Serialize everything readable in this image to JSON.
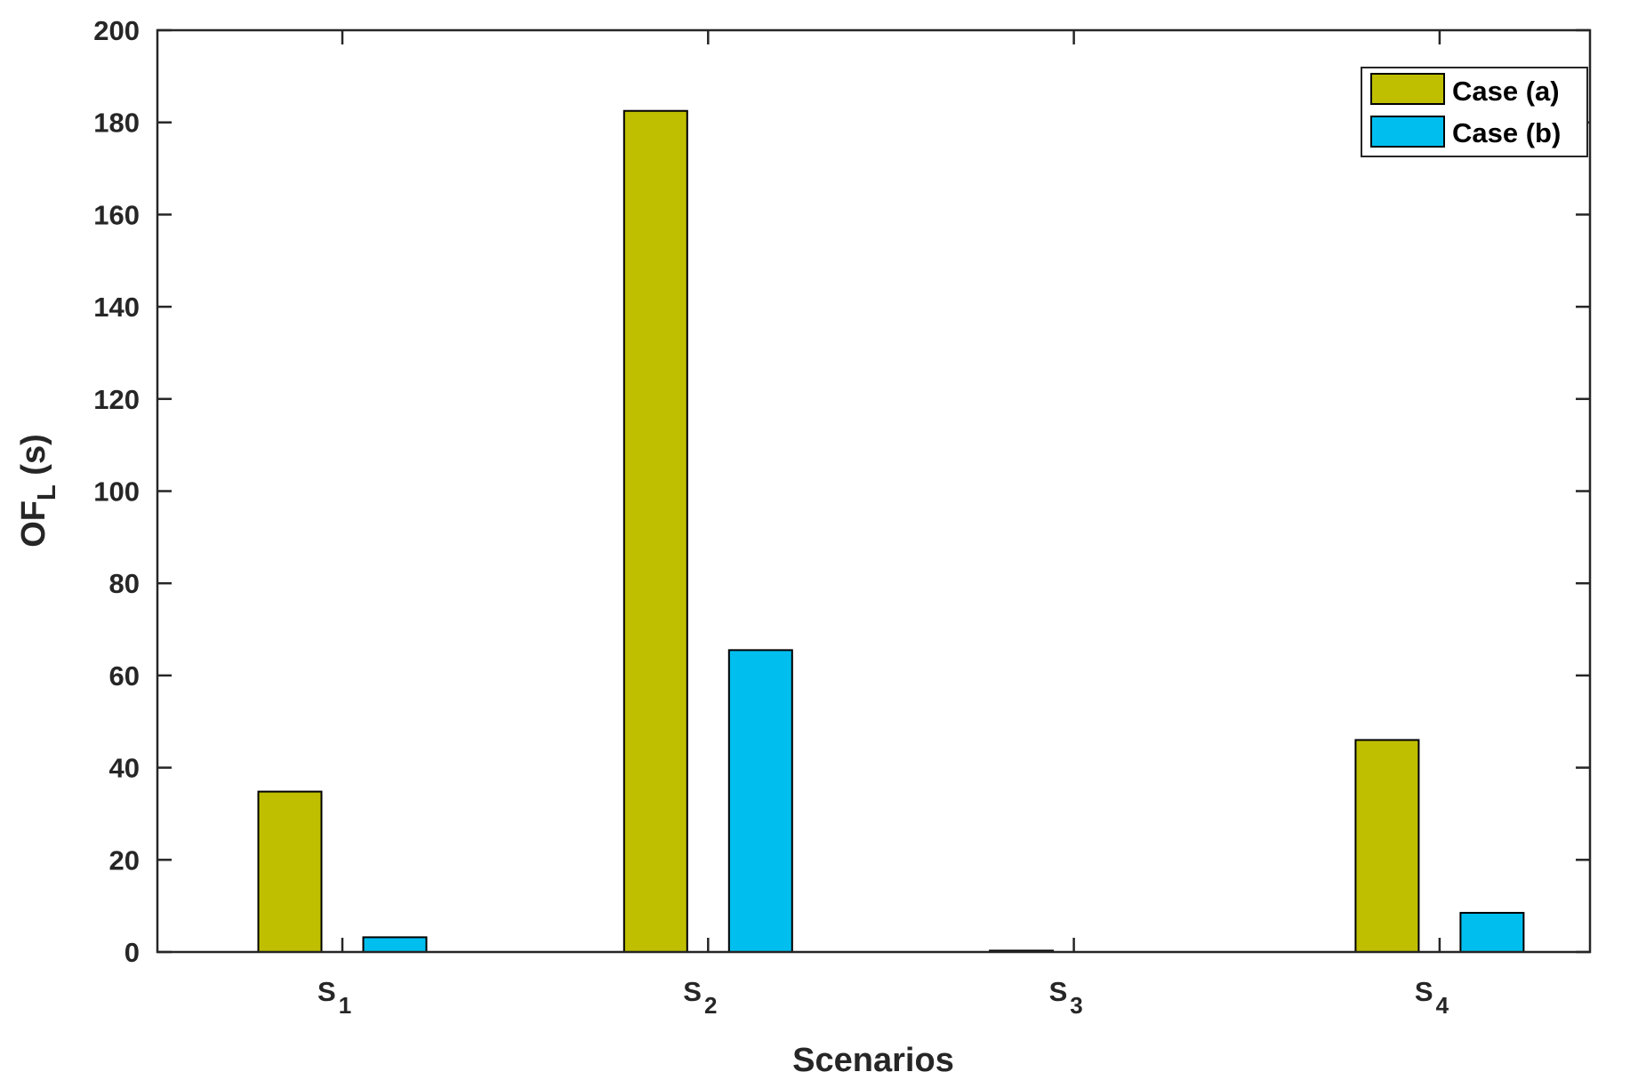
{
  "chart_data": {
    "type": "bar",
    "categories": [
      {
        "base": "S",
        "sub": "1"
      },
      {
        "base": "S",
        "sub": "2"
      },
      {
        "base": "S",
        "sub": "3"
      },
      {
        "base": "S",
        "sub": "4"
      }
    ],
    "series": [
      {
        "name": "Case (a)",
        "color": "#bfbf00",
        "values": [
          34.8,
          182.5,
          0.3,
          46.0
        ]
      },
      {
        "name": "Case (b)",
        "color": "#00bfef",
        "values": [
          3.2,
          65.5,
          0,
          8.5
        ]
      }
    ],
    "xlabel": "Scenarios",
    "ylabel": {
      "base": "OF",
      "sub": "L",
      "suffix": " (s)"
    },
    "ylim": [
      0,
      200
    ],
    "yticks": [
      0,
      20,
      40,
      60,
      80,
      100,
      120,
      140,
      160,
      180,
      200
    ],
    "grid": false,
    "legend_position": "top-right"
  }
}
